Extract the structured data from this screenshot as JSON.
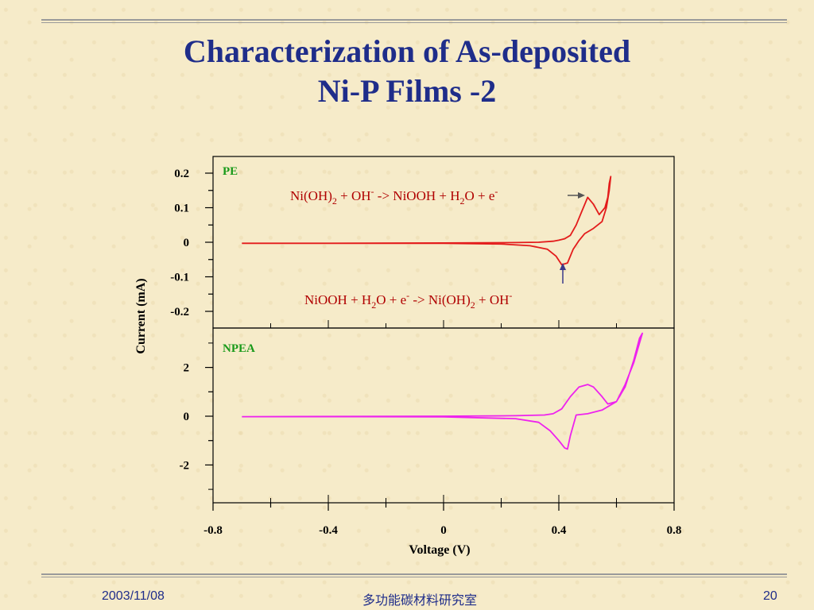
{
  "slide": {
    "title_line1": "Characterization of As-deposited",
    "title_line2": "Ni-P Films -2",
    "date": "2003/11/08",
    "lab": "多功能碳材料研究室",
    "page": "20"
  },
  "colors": {
    "title": "#1f2d8a",
    "pe_curve": "#e31b1b",
    "npea_curve": "#ee22ee",
    "panel_label": "#1a9a1a",
    "annotation": "#b00000"
  },
  "chart_data": {
    "type": "line",
    "xlabel": "Voltage (V)",
    "ylabel": "Current (mA)",
    "xlim": [
      -0.8,
      0.8
    ],
    "x_ticks": [
      "-0.8",
      "-0.4",
      "0",
      "0.4",
      "0.8"
    ],
    "panels": [
      {
        "name": "PE",
        "ylim": [
          -0.25,
          0.25
        ],
        "y_ticks": [
          "0.2",
          "0.1",
          "0",
          "-0.1",
          "-0.2"
        ],
        "series": [
          {
            "name": "PE",
            "x": [
              -0.7,
              -0.4,
              0.0,
              0.25,
              0.33,
              0.38,
              0.4,
              0.42,
              0.44,
              0.46,
              0.48,
              0.5,
              0.52,
              0.54,
              0.56,
              0.57,
              0.575,
              0.58,
              0.58,
              0.575,
              0.565,
              0.55,
              0.52,
              0.49,
              0.47,
              0.45,
              0.43,
              0.41,
              0.39,
              0.36,
              0.3,
              0.2,
              0.0,
              -0.4,
              -0.7
            ],
            "y": [
              -0.003,
              -0.003,
              -0.002,
              -0.001,
              0.0,
              0.003,
              0.006,
              0.01,
              0.02,
              0.05,
              0.09,
              0.13,
              0.11,
              0.08,
              0.1,
              0.13,
              0.17,
              0.19,
              0.19,
              0.15,
              0.1,
              0.06,
              0.04,
              0.025,
              0.005,
              -0.02,
              -0.06,
              -0.065,
              -0.04,
              -0.02,
              -0.01,
              -0.005,
              -0.003,
              -0.003,
              -0.003
            ]
          }
        ],
        "annotations": [
          {
            "main": "Ni(OH)",
            "sub1": "2",
            "mid1": " + OH",
            "sup1": "-",
            "mid2": " -> NiOOH + H",
            "sub2": "2",
            "mid3": "O + e",
            "sup2": "-"
          },
          {
            "main": "NiOOH + H",
            "sub1": "2",
            "mid1": "O + e",
            "sup1": "-",
            "mid2": " -> Ni(OH)",
            "sub2": "2",
            "mid3": " + OH",
            "sup2": "-"
          }
        ]
      },
      {
        "name": "NPEA",
        "ylim": [
          -3.3,
          3.5
        ],
        "y_ticks": [
          "2",
          "0",
          "-2"
        ],
        "series": [
          {
            "name": "NPEA",
            "x": [
              -0.7,
              -0.3,
              0.0,
              0.25,
              0.35,
              0.38,
              0.41,
              0.44,
              0.47,
              0.5,
              0.52,
              0.55,
              0.57,
              0.6,
              0.63,
              0.66,
              0.68,
              0.69,
              0.69,
              0.68,
              0.66,
              0.63,
              0.6,
              0.55,
              0.5,
              0.46,
              0.44,
              0.43,
              0.42,
              0.4,
              0.37,
              0.33,
              0.25,
              0.0,
              -0.3,
              -0.7
            ],
            "y": [
              -0.02,
              -0.01,
              0.0,
              0.02,
              0.05,
              0.1,
              0.3,
              0.8,
              1.2,
              1.3,
              1.2,
              0.8,
              0.5,
              0.6,
              1.2,
              2.3,
              3.2,
              3.4,
              3.4,
              3.0,
              2.2,
              1.3,
              0.6,
              0.25,
              0.1,
              0.05,
              -0.8,
              -1.35,
              -1.3,
              -1.0,
              -0.6,
              -0.25,
              -0.1,
              -0.03,
              -0.02,
              -0.02
            ]
          }
        ]
      }
    ]
  }
}
